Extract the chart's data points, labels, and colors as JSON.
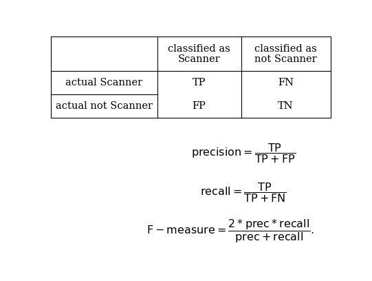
{
  "background_color": "#ffffff",
  "table": {
    "col0_labels": [
      "actual Scanner",
      "actual not Scanner"
    ],
    "col1_labels": [
      "TP",
      "FP"
    ],
    "col2_labels": [
      "FN",
      "TN"
    ],
    "header_line1_col1": "classified as",
    "header_line1_col2": "classified as",
    "header_line2_col1": "Scanner",
    "header_line2_col2": "not Scanner"
  },
  "font_size_table": 10.5,
  "font_size_formula": 11.5
}
